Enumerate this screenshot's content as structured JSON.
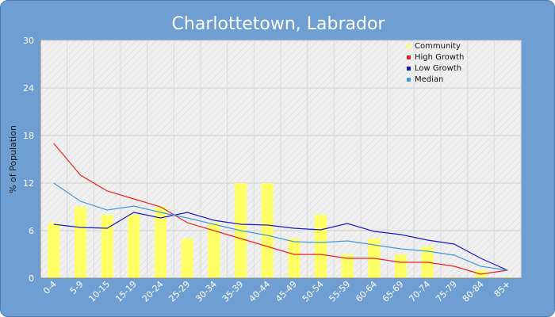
{
  "chart_data": {
    "type": "bar",
    "title": "Charlottetown, Labrador",
    "xlabel": "",
    "ylabel": "% of Population",
    "ylim": [
      0,
      30
    ],
    "yticks": [
      0,
      6,
      12,
      18,
      24,
      30
    ],
    "grid": true,
    "legend_position": "top-right",
    "categories": [
      "0-4",
      "5-9",
      "10-15",
      "15-19",
      "20-24",
      "25-29",
      "30-34",
      "35-39",
      "40-44",
      "45-49",
      "50-54",
      "55-59",
      "60-64",
      "65-69",
      "70-74",
      "75-79",
      "80-84",
      "85+"
    ],
    "series": [
      {
        "name": "Community",
        "type": "bar",
        "color": "#ffff66",
        "values": [
          7,
          9,
          8,
          8,
          9,
          5,
          7,
          12,
          12,
          5,
          8,
          3,
          5,
          3,
          4,
          0.1,
          1,
          0.1
        ]
      },
      {
        "name": "High Growth",
        "type": "line",
        "color": "#ee2222",
        "values": [
          17,
          13,
          11,
          10,
          9,
          7,
          6,
          5,
          4,
          3,
          3,
          2.5,
          2.5,
          2,
          2,
          1.5,
          0.5,
          1
        ]
      },
      {
        "name": "Low Growth",
        "type": "line",
        "color": "#1a1acc",
        "values": [
          6.8,
          6.4,
          6.3,
          8.3,
          7.6,
          8.3,
          7.3,
          6.8,
          6.7,
          6.3,
          6.1,
          6.9,
          5.9,
          5.5,
          4.8,
          4.3,
          2.5,
          1
        ]
      },
      {
        "name": "Median",
        "type": "line",
        "color": "#4499dd",
        "values": [
          12,
          9.7,
          8.6,
          9.1,
          8.3,
          7.6,
          6.8,
          6,
          5.4,
          4.6,
          4.5,
          4.7,
          4.2,
          3.7,
          3.4,
          2.9,
          1.5,
          1
        ]
      }
    ]
  }
}
